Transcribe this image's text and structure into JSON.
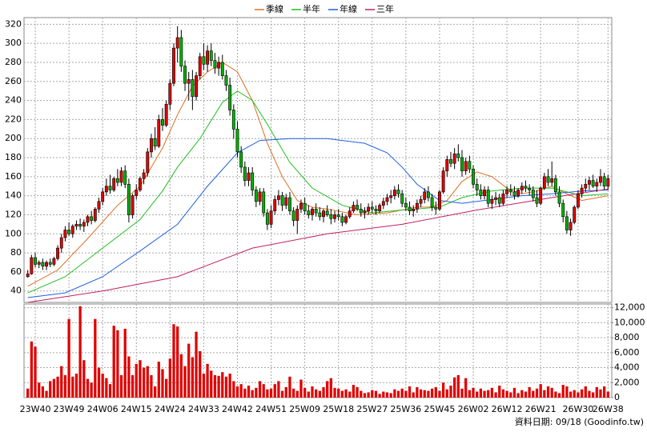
{
  "chart_data": {
    "type": "candlestick",
    "legend": "top",
    "up_color": "#e00000",
    "down_color": "#00b000",
    "xlim": [
      -1,
      156
    ],
    "xticks": [
      {
        "value": 2,
        "label": "23W40"
      },
      {
        "value": 11,
        "label": "23W49"
      },
      {
        "value": 20,
        "label": "24W06"
      },
      {
        "value": 29,
        "label": "24W15"
      },
      {
        "value": 38,
        "label": "24W24"
      },
      {
        "value": 47,
        "label": "24W33"
      },
      {
        "value": 56,
        "label": "24W42"
      },
      {
        "value": 65,
        "label": "24W51"
      },
      {
        "value": 74,
        "label": "25W09"
      },
      {
        "value": 83,
        "label": "25W18"
      },
      {
        "value": 92,
        "label": "25W27"
      },
      {
        "value": 101,
        "label": "25W36"
      },
      {
        "value": 110,
        "label": "25W45"
      },
      {
        "value": 119,
        "label": "26W02"
      },
      {
        "value": 128,
        "label": "26W12"
      },
      {
        "value": 137,
        "label": "26W21"
      },
      {
        "value": 147,
        "label": "26W30"
      },
      {
        "value": 155,
        "label": "26W38"
      }
    ],
    "ylim": [
      28,
      327
    ],
    "yticks": [
      40,
      60,
      80,
      100,
      120,
      140,
      160,
      180,
      200,
      220,
      240,
      260,
      280,
      300,
      320
    ],
    "y2lim": [
      0,
      12500
    ],
    "y2ticks": [
      0,
      {
        "value": 2000,
        "label": "2,000"
      },
      {
        "value": 4000,
        "label": "4,000"
      },
      {
        "value": 6000,
        "label": "6,000"
      },
      {
        "value": 8000,
        "label": "8,000"
      },
      {
        "value": 10000,
        "label": "10,000"
      },
      {
        "value": 12000,
        "label": "12,000"
      }
    ],
    "grid": true,
    "ohlc": [
      [
        55,
        62,
        54,
        58
      ],
      [
        58,
        78,
        57,
        75
      ],
      [
        75,
        80,
        65,
        68
      ],
      [
        68,
        72,
        64,
        70
      ],
      [
        70,
        74,
        62,
        66
      ],
      [
        66,
        72,
        62,
        70
      ],
      [
        70,
        74,
        65,
        68
      ],
      [
        68,
        76,
        66,
        74
      ],
      [
        74,
        88,
        72,
        85
      ],
      [
        85,
        100,
        80,
        96
      ],
      [
        96,
        108,
        92,
        104
      ],
      [
        104,
        112,
        98,
        100
      ],
      [
        100,
        110,
        96,
        108
      ],
      [
        108,
        114,
        104,
        110
      ],
      [
        110,
        116,
        104,
        108
      ],
      [
        108,
        115,
        102,
        112
      ],
      [
        112,
        120,
        108,
        118
      ],
      [
        118,
        124,
        110,
        114
      ],
      [
        114,
        128,
        112,
        126
      ],
      [
        126,
        138,
        122,
        134
      ],
      [
        134,
        148,
        130,
        144
      ],
      [
        144,
        158,
        140,
        150
      ],
      [
        150,
        162,
        142,
        146
      ],
      [
        146,
        160,
        144,
        158
      ],
      [
        158,
        168,
        150,
        154
      ],
      [
        154,
        170,
        150,
        166
      ],
      [
        166,
        172,
        148,
        152
      ],
      [
        152,
        158,
        112,
        120
      ],
      [
        120,
        142,
        116,
        140
      ],
      [
        140,
        152,
        136,
        146
      ],
      [
        146,
        160,
        144,
        158
      ],
      [
        158,
        168,
        152,
        164
      ],
      [
        164,
        190,
        160,
        186
      ],
      [
        186,
        205,
        180,
        200
      ],
      [
        200,
        212,
        188,
        192
      ],
      [
        192,
        225,
        190,
        220
      ],
      [
        220,
        232,
        208,
        214
      ],
      [
        214,
        240,
        212,
        236
      ],
      [
        236,
        262,
        230,
        258
      ],
      [
        258,
        300,
        255,
        295
      ],
      [
        295,
        318,
        280,
        306
      ],
      [
        306,
        314,
        270,
        276
      ],
      [
        276,
        282,
        250,
        258
      ],
      [
        258,
        270,
        240,
        262
      ],
      [
        262,
        272,
        230,
        244
      ],
      [
        244,
        270,
        240,
        266
      ],
      [
        266,
        290,
        262,
        286
      ],
      [
        286,
        300,
        272,
        278
      ],
      [
        278,
        298,
        270,
        292
      ],
      [
        292,
        300,
        276,
        282
      ],
      [
        282,
        290,
        268,
        274
      ],
      [
        274,
        286,
        266,
        280
      ],
      [
        280,
        288,
        262,
        266
      ],
      [
        266,
        272,
        250,
        256
      ],
      [
        256,
        264,
        224,
        230
      ],
      [
        230,
        236,
        200,
        210
      ],
      [
        210,
        218,
        180,
        186
      ],
      [
        186,
        192,
        164,
        170
      ],
      [
        170,
        176,
        150,
        156
      ],
      [
        156,
        170,
        150,
        164
      ],
      [
        164,
        170,
        140,
        146
      ],
      [
        146,
        150,
        128,
        134
      ],
      [
        134,
        148,
        130,
        144
      ],
      [
        144,
        148,
        118,
        122
      ],
      [
        122,
        126,
        104,
        110
      ],
      [
        110,
        130,
        106,
        124
      ],
      [
        124,
        140,
        120,
        136
      ],
      [
        136,
        146,
        130,
        140
      ],
      [
        140,
        144,
        124,
        130
      ],
      [
        130,
        142,
        126,
        138
      ],
      [
        138,
        144,
        120,
        124
      ],
      [
        124,
        128,
        108,
        114
      ],
      [
        114,
        130,
        100,
        126
      ],
      [
        126,
        136,
        122,
        132
      ],
      [
        132,
        138,
        120,
        124
      ],
      [
        124,
        130,
        116,
        120
      ],
      [
        120,
        128,
        114,
        126
      ],
      [
        126,
        132,
        118,
        122
      ],
      [
        122,
        128,
        114,
        118
      ],
      [
        118,
        126,
        112,
        124
      ],
      [
        124,
        130,
        118,
        120
      ],
      [
        120,
        126,
        110,
        116
      ],
      [
        116,
        124,
        112,
        120
      ],
      [
        120,
        126,
        114,
        118
      ],
      [
        118,
        122,
        108,
        112
      ],
      [
        112,
        120,
        110,
        118
      ],
      [
        118,
        128,
        116,
        124
      ],
      [
        124,
        134,
        122,
        130
      ],
      [
        130,
        136,
        124,
        126
      ],
      [
        126,
        132,
        118,
        122
      ],
      [
        122,
        128,
        116,
        124
      ],
      [
        124,
        132,
        120,
        128
      ],
      [
        128,
        134,
        122,
        126
      ],
      [
        126,
        130,
        120,
        124
      ],
      [
        124,
        132,
        122,
        130
      ],
      [
        130,
        138,
        126,
        134
      ],
      [
        134,
        142,
        130,
        138
      ],
      [
        138,
        146,
        132,
        140
      ],
      [
        140,
        150,
        136,
        146
      ],
      [
        146,
        152,
        138,
        142
      ],
      [
        142,
        146,
        128,
        132
      ],
      [
        132,
        138,
        124,
        128
      ],
      [
        128,
        134,
        120,
        124
      ],
      [
        124,
        130,
        118,
        126
      ],
      [
        126,
        136,
        122,
        132
      ],
      [
        132,
        140,
        128,
        136
      ],
      [
        136,
        148,
        132,
        144
      ],
      [
        144,
        150,
        134,
        138
      ],
      [
        138,
        142,
        124,
        128
      ],
      [
        128,
        134,
        120,
        126
      ],
      [
        126,
        146,
        124,
        144
      ],
      [
        144,
        170,
        142,
        166
      ],
      [
        166,
        182,
        160,
        178
      ],
      [
        178,
        186,
        170,
        174
      ],
      [
        174,
        190,
        168,
        184
      ],
      [
        184,
        194,
        176,
        180
      ],
      [
        180,
        188,
        160,
        166
      ],
      [
        166,
        180,
        162,
        176
      ],
      [
        176,
        182,
        164,
        168
      ],
      [
        168,
        172,
        148,
        152
      ],
      [
        152,
        158,
        140,
        146
      ],
      [
        146,
        152,
        136,
        140
      ],
      [
        140,
        150,
        136,
        146
      ],
      [
        146,
        150,
        128,
        132
      ],
      [
        132,
        140,
        126,
        136
      ],
      [
        136,
        144,
        130,
        138
      ],
      [
        138,
        142,
        128,
        132
      ],
      [
        132,
        146,
        130,
        142
      ],
      [
        142,
        150,
        138,
        146
      ],
      [
        146,
        152,
        140,
        144
      ],
      [
        144,
        150,
        136,
        140
      ],
      [
        140,
        148,
        138,
        146
      ],
      [
        146,
        154,
        142,
        150
      ],
      [
        150,
        156,
        144,
        148
      ],
      [
        148,
        152,
        140,
        146
      ],
      [
        146,
        150,
        134,
        138
      ],
      [
        138,
        146,
        128,
        132
      ],
      [
        132,
        150,
        130,
        148
      ],
      [
        148,
        164,
        146,
        160
      ],
      [
        160,
        168,
        150,
        154
      ],
      [
        154,
        176,
        150,
        158
      ],
      [
        158,
        162,
        140,
        144
      ],
      [
        144,
        150,
        128,
        132
      ],
      [
        132,
        136,
        112,
        118
      ],
      [
        118,
        124,
        100,
        104
      ],
      [
        104,
        116,
        98,
        112
      ],
      [
        112,
        130,
        110,
        128
      ],
      [
        128,
        146,
        126,
        142
      ],
      [
        142,
        152,
        138,
        148
      ],
      [
        148,
        158,
        144,
        152
      ],
      [
        152,
        160,
        146,
        156
      ],
      [
        156,
        162,
        148,
        150
      ],
      [
        150,
        158,
        144,
        154
      ],
      [
        154,
        168,
        150,
        160
      ],
      [
        160,
        164,
        146,
        150
      ],
      [
        150,
        162,
        146,
        158
      ]
    ],
    "volume": {
      "color": "#e00000",
      "values": [
        1200,
        7500,
        6800,
        2000,
        1500,
        900,
        2200,
        2500,
        2800,
        4200,
        3000,
        10500,
        2800,
        3200,
        12200,
        5000,
        2500,
        2000,
        10500,
        4000,
        3200,
        2600,
        1800,
        9600,
        9000,
        3000,
        9200,
        5500,
        3000,
        4500,
        5000,
        4000,
        4200,
        3000,
        1500,
        4800,
        3800,
        2500,
        5200,
        9800,
        9500,
        5800,
        4200,
        7200,
        5400,
        8800,
        6200,
        3200,
        4500,
        3600,
        3000,
        2900,
        3400,
        2800,
        3200,
        2200,
        1500,
        1800,
        1200,
        1600,
        1000,
        1300,
        2200,
        1800,
        1100,
        1200,
        1800,
        2200,
        900,
        1400,
        2800,
        1200,
        900,
        2400,
        1300,
        800,
        1500,
        1100,
        900,
        1400,
        2200,
        2600,
        1300,
        1200,
        900,
        1100,
        800,
        1700,
        1400,
        900,
        600,
        700,
        1000,
        900,
        500,
        800,
        700,
        600,
        1100,
        900,
        1200,
        900,
        1500,
        700,
        1400,
        1100,
        1000,
        900,
        1200,
        1400,
        900,
        2000,
        1100,
        1600,
        2700,
        3000,
        1200,
        2600,
        1000,
        1300,
        800,
        1200,
        900,
        1000,
        1300,
        700,
        1600,
        1100,
        900,
        700,
        1300,
        600,
        1000,
        800,
        1400,
        900,
        1200,
        1800,
        1000,
        1500,
        1300,
        800,
        600,
        1700,
        1500,
        800,
        1000,
        700,
        1100,
        1500,
        900,
        700,
        1400,
        1100,
        1500,
        800
      ]
    },
    "series": [
      {
        "name": "季線",
        "color": "#e07020",
        "x": [
          0,
          8,
          16,
          24,
          30,
          36,
          40,
          44,
          48,
          52,
          56,
          60,
          64,
          68,
          72,
          76,
          80,
          88,
          96,
          104,
          108,
          112,
          116,
          120,
          124,
          128,
          132,
          136,
          140,
          144,
          148,
          155
        ],
        "values": [
          45,
          62,
          95,
          130,
          150,
          190,
          225,
          255,
          270,
          280,
          270,
          240,
          195,
          160,
          135,
          128,
          126,
          120,
          122,
          128,
          128,
          135,
          155,
          165,
          160,
          148,
          142,
          145,
          150,
          142,
          135,
          140
        ]
      },
      {
        "name": "半年",
        "color": "#20c020",
        "x": [
          0,
          10,
          20,
          30,
          36,
          40,
          46,
          52,
          56,
          60,
          64,
          70,
          76,
          84,
          92,
          100,
          110,
          116,
          124,
          132,
          140,
          148,
          155
        ],
        "values": [
          38,
          55,
          85,
          115,
          145,
          170,
          200,
          238,
          250,
          240,
          215,
          175,
          148,
          130,
          122,
          125,
          128,
          138,
          145,
          148,
          148,
          140,
          142
        ]
      },
      {
        "name": "年線",
        "color": "#2060e0",
        "x": [
          0,
          10,
          20,
          30,
          40,
          48,
          56,
          62,
          70,
          80,
          90,
          96,
          100,
          104,
          110,
          116,
          124,
          132,
          140,
          148,
          155
        ],
        "values": [
          33,
          38,
          55,
          82,
          110,
          150,
          185,
          198,
          200,
          200,
          195,
          185,
          170,
          152,
          135,
          132,
          136,
          140,
          142,
          145,
          146
        ]
      },
      {
        "name": "三年",
        "color": "#c02060",
        "x": [
          0,
          20,
          40,
          60,
          80,
          100,
          120,
          140,
          155
        ],
        "values": [
          28,
          40,
          55,
          85,
          100,
          110,
          125,
          138,
          147
        ]
      }
    ],
    "footer": "資料日期: 09/18 (Goodinfo.tw)"
  }
}
